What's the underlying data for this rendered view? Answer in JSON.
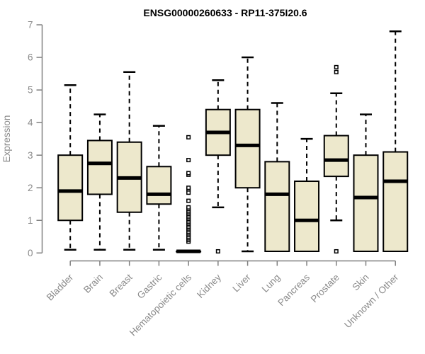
{
  "chart_data": {
    "type": "boxplot",
    "title": "ENSG00000260633 - RP11-375I20.6",
    "ylabel": "Expression",
    "xlabel": "",
    "ylim": [
      0,
      7
    ],
    "yticks": [
      0,
      1,
      2,
      3,
      4,
      5,
      6,
      7
    ],
    "grid": "off",
    "legend": "none",
    "categories": [
      "Bladder",
      "Brain",
      "Breast",
      "Gastric",
      "Hematopoietic cells",
      "Kidney",
      "Liver",
      "Lung",
      "Pancreas",
      "Prostate",
      "Skin",
      "Unknown / Other"
    ],
    "boxes": [
      {
        "label": "Bladder",
        "lo": 0.1,
        "q1": 1.0,
        "med": 1.9,
        "q3": 3.0,
        "hi": 5.15,
        "outliers": []
      },
      {
        "label": "Brain",
        "lo": 0.1,
        "q1": 1.8,
        "med": 2.75,
        "q3": 3.45,
        "hi": 4.25,
        "outliers": []
      },
      {
        "label": "Breast",
        "lo": 0.1,
        "q1": 1.25,
        "med": 2.3,
        "q3": 3.4,
        "hi": 5.55,
        "outliers": []
      },
      {
        "label": "Gastric",
        "lo": 0.1,
        "q1": 1.5,
        "med": 1.8,
        "q3": 2.65,
        "hi": 3.9,
        "outliers": []
      },
      {
        "label": "Hematopoietic cells",
        "lo": 0.05,
        "q1": 0.05,
        "med": 0.05,
        "q3": 0.05,
        "hi": 0.05,
        "outliers": [
          0.35,
          0.4,
          0.45,
          0.5,
          0.55,
          0.6,
          0.65,
          0.7,
          0.75,
          0.8,
          0.85,
          0.9,
          0.95,
          1.0,
          1.05,
          1.1,
          1.15,
          1.2,
          1.25,
          1.3,
          1.35,
          1.4,
          1.6,
          1.85,
          1.95,
          2.0,
          2.4,
          2.45,
          2.85,
          3.55
        ]
      },
      {
        "label": "Kidney",
        "lo": 1.4,
        "q1": 3.0,
        "med": 3.7,
        "q3": 4.4,
        "hi": 5.3,
        "outliers": [
          0.05
        ]
      },
      {
        "label": "Liver",
        "lo": 0.05,
        "q1": 2.0,
        "med": 3.3,
        "q3": 4.4,
        "hi": 6.0,
        "outliers": []
      },
      {
        "label": "Lung",
        "lo": 0.05,
        "q1": 0.05,
        "med": 1.8,
        "q3": 2.8,
        "hi": 4.6,
        "outliers": []
      },
      {
        "label": "Pancreas",
        "lo": 0.05,
        "q1": 0.05,
        "med": 1.0,
        "q3": 2.2,
        "hi": 3.5,
        "outliers": []
      },
      {
        "label": "Prostate",
        "lo": 1.0,
        "q1": 2.35,
        "med": 2.85,
        "q3": 3.6,
        "hi": 4.9,
        "outliers": [
          5.7,
          5.55,
          0.05
        ]
      },
      {
        "label": "Skin",
        "lo": 0.05,
        "q1": 0.05,
        "med": 1.7,
        "q3": 3.0,
        "hi": 4.25,
        "outliers": []
      },
      {
        "label": "Unknown / Other",
        "lo": 0.05,
        "q1": 0.05,
        "med": 2.2,
        "q3": 3.1,
        "hi": 6.8,
        "outliers": []
      }
    ],
    "colors": {
      "box_fill": "#EDE8CC",
      "box_stroke": "#000000",
      "median": "#000000",
      "whisker": "#000000",
      "axis": "#808080",
      "tick_text": "#8a8a8a",
      "title_text": "#000000",
      "background": "#ffffff",
      "outlier_fill": "#ffffff",
      "outlier_stroke": "#000000"
    }
  }
}
